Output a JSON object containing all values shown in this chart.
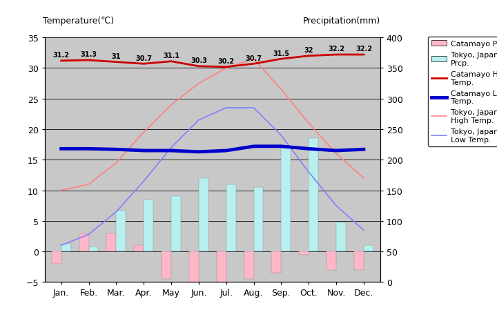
{
  "months": [
    "Jan.",
    "Feb.",
    "Mar.",
    "Apr.",
    "May",
    "Jun.",
    "Jul.",
    "Aug.",
    "Sep.",
    "Oct.",
    "Nov.",
    "Dec."
  ],
  "catamayo_high": [
    31.2,
    31.3,
    31.0,
    30.7,
    31.1,
    30.3,
    30.2,
    30.7,
    31.5,
    32.0,
    32.2,
    32.2
  ],
  "catamayo_low": [
    16.8,
    16.8,
    16.7,
    16.5,
    16.5,
    16.3,
    16.5,
    17.2,
    17.2,
    16.8,
    16.5,
    16.7
  ],
  "tokyo_high": [
    10.0,
    11.0,
    14.5,
    19.5,
    24.0,
    27.5,
    30.0,
    31.5,
    26.5,
    21.0,
    16.0,
    12.0
  ],
  "tokyo_low": [
    1.0,
    2.8,
    6.5,
    11.5,
    17.0,
    21.5,
    23.5,
    23.5,
    19.0,
    13.0,
    7.5,
    3.5
  ],
  "catamayo_prcp_bar": [
    -2.0,
    3.0,
    3.0,
    1.0,
    -4.5,
    -5.8,
    -5.5,
    -4.5,
    -3.5,
    -0.5,
    -3.0,
    -3.0
  ],
  "tokyo_prcp_bar": [
    1.2,
    0.8,
    6.7,
    8.5,
    9.0,
    12.0,
    11.0,
    10.5,
    17.0,
    18.5,
    4.8,
    1.0
  ],
  "bg_color": "#c8c8c8",
  "catamayo_high_color": "#cc0000",
  "catamayo_low_color": "#0000cc",
  "tokyo_high_color": "#ff8080",
  "tokyo_low_color": "#8080ff",
  "catamayo_prcp_color": "#ffb6c8",
  "tokyo_prcp_color": "#b8f0f0",
  "ylim_temp": [
    -5,
    35
  ],
  "ylim_prcp": [
    0,
    400
  ],
  "title_left": "Temperature(℃)",
  "title_right": "Precipitation(mm)",
  "annot_high": [
    "31.2",
    "31.3",
    "31",
    "30.7",
    "31.1",
    "30.3",
    "30.2",
    "30.7",
    "31.5",
    "32",
    "32.2",
    "32.2"
  ]
}
